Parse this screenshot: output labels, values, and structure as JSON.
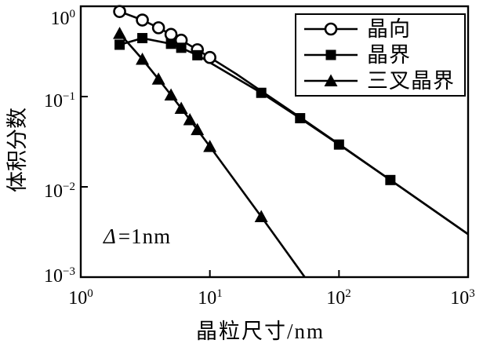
{
  "chart_data": {
    "type": "line",
    "title": "",
    "xlabel": "晶粒尺寸/nm",
    "ylabel": "体积分数",
    "x_scale": "log",
    "y_scale": "log",
    "xlim": [
      1,
      1000
    ],
    "ylim": [
      0.001,
      1
    ],
    "grid": false,
    "legend_position": "top-right",
    "annotation": {
      "symbol": "Δ",
      "rest": "=1nm"
    },
    "colors": {
      "foreground": "#000000",
      "background": "#ffffff"
    },
    "xticks": [
      {
        "base": "10",
        "exp": "0",
        "value": 1
      },
      {
        "base": "10",
        "exp": "1",
        "value": 10
      },
      {
        "base": "10",
        "exp": "2",
        "value": 100
      },
      {
        "base": "10",
        "exp": "3",
        "value": 1000
      }
    ],
    "yticks": [
      {
        "base": "10",
        "exp": "0",
        "value": 1
      },
      {
        "base": "10",
        "exp": "−1",
        "value": 0.1
      },
      {
        "base": "10",
        "exp": "−2",
        "value": 0.01
      },
      {
        "base": "10",
        "exp": "−3",
        "value": 0.001
      }
    ],
    "series": [
      {
        "name": "晶向",
        "marker": "circle",
        "marker_style": "open",
        "x": [
          2,
          3,
          4,
          5,
          6,
          8,
          10
        ],
        "y": [
          0.875,
          0.704,
          0.578,
          0.488,
          0.421,
          0.33,
          0.271
        ],
        "line_x": [
          2,
          3,
          4,
          5,
          6,
          8,
          10,
          16,
          25,
          50,
          100,
          250,
          1000
        ],
        "line_y": [
          0.875,
          0.704,
          0.578,
          0.488,
          0.421,
          0.33,
          0.271,
          0.178,
          0.1153,
          0.0588,
          0.0297,
          0.0119,
          0.00299
        ]
      },
      {
        "name": "晶界",
        "marker": "square",
        "marker_style": "filled",
        "x": [
          2,
          3,
          5,
          6,
          8,
          25,
          50,
          100,
          250
        ],
        "y": [
          0.375,
          0.444,
          0.384,
          0.347,
          0.287,
          0.11,
          0.0576,
          0.0294,
          0.0119
        ],
        "line_x": [
          2,
          3,
          5,
          6,
          8,
          25,
          50,
          100,
          250,
          1000
        ],
        "line_y": [
          0.375,
          0.444,
          0.384,
          0.347,
          0.287,
          0.11,
          0.0576,
          0.0294,
          0.0119,
          0.00299
        ]
      },
      {
        "name": "三叉晶界",
        "marker": "triangle",
        "marker_style": "filled",
        "x": [
          2,
          3,
          4,
          5,
          6,
          7,
          8,
          10,
          25
        ],
        "y": [
          0.5,
          0.259,
          0.156,
          0.104,
          0.0741,
          0.0554,
          0.043,
          0.028,
          0.00467
        ],
        "line_x": [
          2,
          3,
          4,
          5,
          6,
          7,
          8,
          10,
          25,
          60
        ],
        "line_y": [
          0.5,
          0.259,
          0.156,
          0.104,
          0.0741,
          0.0554,
          0.043,
          0.028,
          0.00467,
          0.00082
        ]
      }
    ]
  }
}
